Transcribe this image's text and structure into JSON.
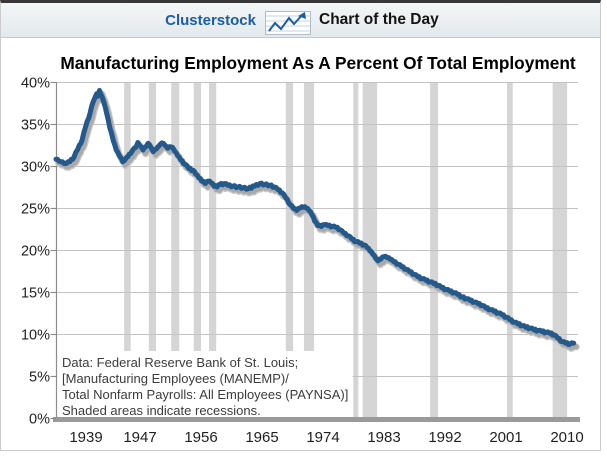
{
  "header": {
    "brand": "Clusterstock",
    "title": "Chart of the Day",
    "icon": "line-chart-icon"
  },
  "chart": {
    "title": "Manufacturing Employment As A Percent Of Total Employment",
    "note_lines": [
      "Data: Federal Reserve Bank of St. Louis;",
      "[Manufacturing Employees (MANEMP)/",
      "Total Nonfarm Payrolls: All Employees (PAYNSA)]",
      "Shaded areas indicate recessions."
    ],
    "colors": {
      "line": "#24598c",
      "band": "#d5d5d5",
      "grid": "#c3c3c3",
      "axis_bar": "#9a9a9a",
      "axis": "#8c8c8c",
      "brand_blue": "#1d5ca6",
      "label": "#1f1f1f",
      "note": "#3c3c3c"
    }
  },
  "chart_data": {
    "type": "line",
    "title": "Manufacturing Employment As A Percent Of Total Employment",
    "xlabel": "",
    "ylabel": "",
    "ylim": [
      0,
      40
    ],
    "xlim": [
      1939,
      2011
    ],
    "grid": "horizontal",
    "legend": "none",
    "monthly_noise_amplitude": 0.1,
    "y_tick_labels": [
      "40%",
      "35%",
      "30%",
      "25%",
      "20%",
      "15%",
      "10%",
      "5%",
      "0%"
    ],
    "x_tick_labels": [
      "1939",
      "1947",
      "1956",
      "1965",
      "1974",
      "1983",
      "1992",
      "2001",
      "2010"
    ],
    "recession_bands": [
      [
        1948.4,
        1949.3
      ],
      [
        1951.8,
        1952.8
      ],
      [
        1954.9,
        1956.0
      ],
      [
        1958.0,
        1959.0
      ],
      [
        1960.1,
        1961.1
      ],
      [
        1970.7,
        1971.7
      ],
      [
        1973.2,
        1974.6
      ],
      [
        1980.0,
        1980.7
      ],
      [
        1981.3,
        1983.3
      ],
      [
        1990.6,
        1991.7
      ],
      [
        2001.2,
        2002.0
      ],
      [
        2007.5,
        2009.5
      ]
    ],
    "series": [
      {
        "name": "Manufacturing employment as a percent of total employment",
        "points": [
          [
            1939.0,
            30.8
          ],
          [
            1939.4,
            30.6
          ],
          [
            1939.7,
            30.5
          ],
          [
            1940.1,
            30.3
          ],
          [
            1940.4,
            30.3
          ],
          [
            1940.9,
            30.5
          ],
          [
            1941.5,
            31.1
          ],
          [
            1942.0,
            32.0
          ],
          [
            1942.6,
            33.1
          ],
          [
            1943.1,
            34.7
          ],
          [
            1943.7,
            36.3
          ],
          [
            1944.1,
            37.6
          ],
          [
            1944.4,
            38.2
          ],
          [
            1944.6,
            38.6
          ],
          [
            1944.75,
            38.3
          ],
          [
            1945.0,
            39.0
          ],
          [
            1945.15,
            38.6
          ],
          [
            1945.6,
            37.6
          ],
          [
            1946.0,
            36.2
          ],
          [
            1946.4,
            34.6
          ],
          [
            1946.9,
            33.0
          ],
          [
            1947.3,
            31.9
          ],
          [
            1947.8,
            31.1
          ],
          [
            1948.2,
            30.5
          ],
          [
            1948.5,
            30.7
          ],
          [
            1948.9,
            31.1
          ],
          [
            1949.3,
            31.5
          ],
          [
            1949.6,
            31.9
          ],
          [
            1950.0,
            32.2
          ],
          [
            1950.3,
            32.8
          ],
          [
            1950.6,
            32.4
          ],
          [
            1951.0,
            31.9
          ],
          [
            1951.4,
            32.3
          ],
          [
            1951.7,
            32.7
          ],
          [
            1952.1,
            32.2
          ],
          [
            1952.4,
            31.7
          ],
          [
            1952.8,
            32.0
          ],
          [
            1953.1,
            32.3
          ],
          [
            1953.4,
            32.6
          ],
          [
            1953.8,
            32.7
          ],
          [
            1954.1,
            32.4
          ],
          [
            1954.4,
            32.1
          ],
          [
            1954.8,
            32.3
          ],
          [
            1955.1,
            32.2
          ],
          [
            1955.4,
            31.7
          ],
          [
            1955.8,
            31.2
          ],
          [
            1956.2,
            30.7
          ],
          [
            1956.8,
            30.2
          ],
          [
            1957.3,
            29.7
          ],
          [
            1957.9,
            29.5
          ],
          [
            1958.3,
            29.0
          ],
          [
            1958.7,
            28.6
          ],
          [
            1959.1,
            28.2
          ],
          [
            1959.6,
            27.9
          ],
          [
            1960.0,
            28.2
          ],
          [
            1960.4,
            28.0
          ],
          [
            1960.8,
            27.6
          ],
          [
            1961.2,
            27.5
          ],
          [
            1961.6,
            27.8
          ],
          [
            1962.2,
            27.9
          ],
          [
            1962.7,
            27.7
          ],
          [
            1963.4,
            27.6
          ],
          [
            1964.1,
            27.5
          ],
          [
            1964.8,
            27.4
          ],
          [
            1965.5,
            27.3
          ],
          [
            1966.4,
            27.6
          ],
          [
            1967.1,
            27.9
          ],
          [
            1967.8,
            27.8
          ],
          [
            1968.5,
            27.7
          ],
          [
            1969.1,
            27.5
          ],
          [
            1969.6,
            27.2
          ],
          [
            1970.2,
            26.8
          ],
          [
            1970.7,
            26.2
          ],
          [
            1971.3,
            25.4
          ],
          [
            1971.8,
            24.9
          ],
          [
            1972.2,
            24.7
          ],
          [
            1972.7,
            25.0
          ],
          [
            1973.1,
            25.1
          ],
          [
            1973.5,
            25.0
          ],
          [
            1973.9,
            24.7
          ],
          [
            1974.3,
            24.2
          ],
          [
            1974.7,
            23.4
          ],
          [
            1975.1,
            22.9
          ],
          [
            1975.6,
            22.8
          ],
          [
            1976.0,
            23.0
          ],
          [
            1976.5,
            22.9
          ],
          [
            1977.1,
            22.8
          ],
          [
            1977.6,
            22.7
          ],
          [
            1978.2,
            22.4
          ],
          [
            1978.7,
            22.0
          ],
          [
            1979.3,
            21.7
          ],
          [
            1979.8,
            21.3
          ],
          [
            1980.4,
            21.0
          ],
          [
            1980.9,
            20.8
          ],
          [
            1981.5,
            20.6
          ],
          [
            1981.9,
            20.3
          ],
          [
            1982.3,
            19.9
          ],
          [
            1982.7,
            19.5
          ],
          [
            1983.1,
            19.0
          ],
          [
            1983.4,
            18.7
          ],
          [
            1983.8,
            18.9
          ],
          [
            1984.2,
            19.2
          ],
          [
            1984.7,
            19.1
          ],
          [
            1985.1,
            18.9
          ],
          [
            1985.6,
            18.6
          ],
          [
            1986.2,
            18.3
          ],
          [
            1986.7,
            18.0
          ],
          [
            1987.3,
            17.7
          ],
          [
            1987.8,
            17.4
          ],
          [
            1988.4,
            17.1
          ],
          [
            1988.9,
            16.8
          ],
          [
            1989.5,
            16.6
          ],
          [
            1990.0,
            16.4
          ],
          [
            1990.6,
            16.2
          ],
          [
            1991.1,
            16.0
          ],
          [
            1991.7,
            15.8
          ],
          [
            1992.2,
            15.5
          ],
          [
            1992.8,
            15.3
          ],
          [
            1993.3,
            15.1
          ],
          [
            1993.9,
            14.9
          ],
          [
            1994.4,
            14.7
          ],
          [
            1995.0,
            14.4
          ],
          [
            1995.6,
            14.2
          ],
          [
            1996.1,
            14.0
          ],
          [
            1996.7,
            13.8
          ],
          [
            1997.2,
            13.6
          ],
          [
            1997.8,
            13.4
          ],
          [
            1998.3,
            13.1
          ],
          [
            1998.9,
            12.9
          ],
          [
            1999.4,
            12.7
          ],
          [
            2000.0,
            12.5
          ],
          [
            2000.5,
            12.3
          ],
          [
            2001.1,
            12.0
          ],
          [
            2001.6,
            11.7
          ],
          [
            2002.2,
            11.4
          ],
          [
            2002.7,
            11.2
          ],
          [
            2003.3,
            11.0
          ],
          [
            2003.8,
            10.8
          ],
          [
            2004.4,
            10.7
          ],
          [
            2004.9,
            10.5
          ],
          [
            2005.5,
            10.4
          ],
          [
            2006.0,
            10.3
          ],
          [
            2006.6,
            10.2
          ],
          [
            2007.1,
            10.1
          ],
          [
            2007.7,
            9.9
          ],
          [
            2008.2,
            9.5
          ],
          [
            2008.8,
            9.1
          ],
          [
            2009.3,
            8.9
          ],
          [
            2009.9,
            8.8
          ],
          [
            2010.4,
            8.9
          ]
        ]
      }
    ]
  }
}
